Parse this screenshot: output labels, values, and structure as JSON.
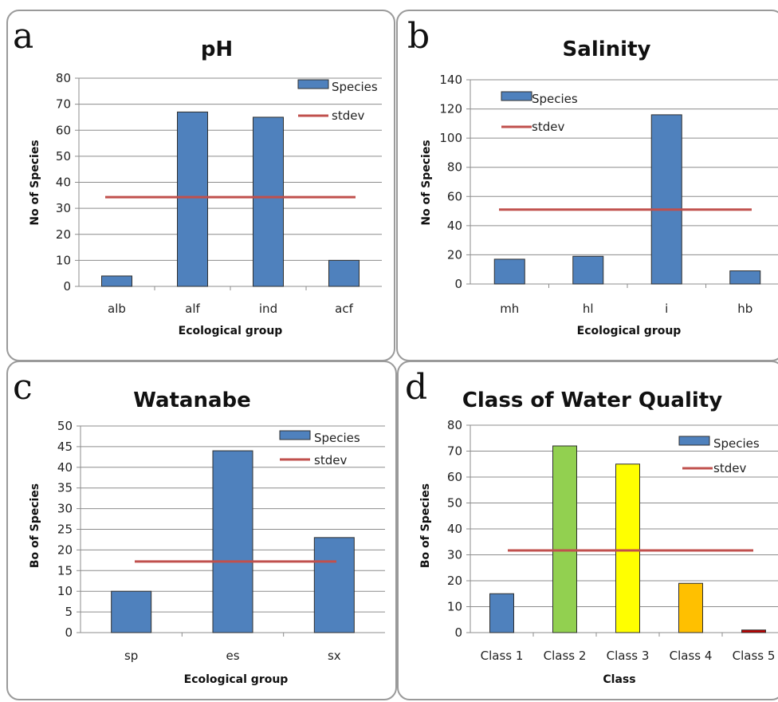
{
  "chart_data": [
    {
      "panel_label": "a",
      "type": "bar",
      "title": "pH",
      "xlabel": "Ecological group",
      "ylabel": "No of Species",
      "categories": [
        "alb",
        "alf",
        "ind",
        "acf"
      ],
      "series": [
        {
          "name": "Species",
          "type": "bar",
          "values": [
            4,
            67,
            65,
            10
          ],
          "color": "#4f81bd"
        },
        {
          "name": "stdev",
          "type": "line",
          "value": 34.3,
          "color": "#c0504d"
        }
      ],
      "ylim": [
        0,
        80
      ],
      "yticks": [
        0,
        10,
        20,
        30,
        40,
        50,
        60,
        70,
        80
      ],
      "grid": true,
      "legend": "top-right"
    },
    {
      "panel_label": "b",
      "type": "bar",
      "title": "Salinity",
      "xlabel": "Ecological group",
      "ylabel": "No of Species",
      "categories": [
        "mh",
        "hl",
        "i",
        "hb"
      ],
      "series": [
        {
          "name": "Species",
          "type": "bar",
          "values": [
            17,
            19,
            116,
            9
          ],
          "color": "#4f81bd"
        },
        {
          "name": "stdev",
          "type": "line",
          "value": 51,
          "color": "#c0504d"
        }
      ],
      "ylim": [
        0,
        140
      ],
      "yticks": [
        0,
        20,
        40,
        60,
        80,
        100,
        120,
        140
      ],
      "grid": true,
      "legend": "top-left"
    },
    {
      "panel_label": "c",
      "type": "bar",
      "title": "Watanabe",
      "xlabel": "Ecological group",
      "ylabel": "Bo of Species",
      "categories": [
        "sp",
        "es",
        "sx"
      ],
      "series": [
        {
          "name": "Species",
          "type": "bar",
          "values": [
            10,
            44,
            23
          ],
          "color": "#4f81bd"
        },
        {
          "name": "stdev",
          "type": "line",
          "value": 17.2,
          "color": "#c0504d"
        }
      ],
      "ylim": [
        0,
        50
      ],
      "yticks": [
        0,
        5,
        10,
        15,
        20,
        25,
        30,
        35,
        40,
        45,
        50
      ],
      "grid": true,
      "legend": "top-right"
    },
    {
      "panel_label": "d",
      "type": "bar",
      "title": "Class of Water Quality",
      "xlabel": "Class",
      "ylabel": "Bo of Species",
      "categories": [
        "Class 1",
        "Class 2",
        "Class 3",
        "Class 4",
        "Class 5"
      ],
      "series": [
        {
          "name": "Species",
          "type": "bar",
          "values": [
            15,
            72,
            65,
            19,
            1
          ],
          "color": "#4f81bd",
          "bar_colors": [
            "#4f81bd",
            "#92d050",
            "#ffff00",
            "#ffc000",
            "#c00000"
          ]
        },
        {
          "name": "stdev",
          "type": "line",
          "value": 31.7,
          "color": "#c0504d"
        }
      ],
      "ylim": [
        0,
        80
      ],
      "yticks": [
        0,
        10,
        20,
        30,
        40,
        50,
        60,
        70,
        80
      ],
      "grid": true,
      "legend": "top-right"
    }
  ]
}
